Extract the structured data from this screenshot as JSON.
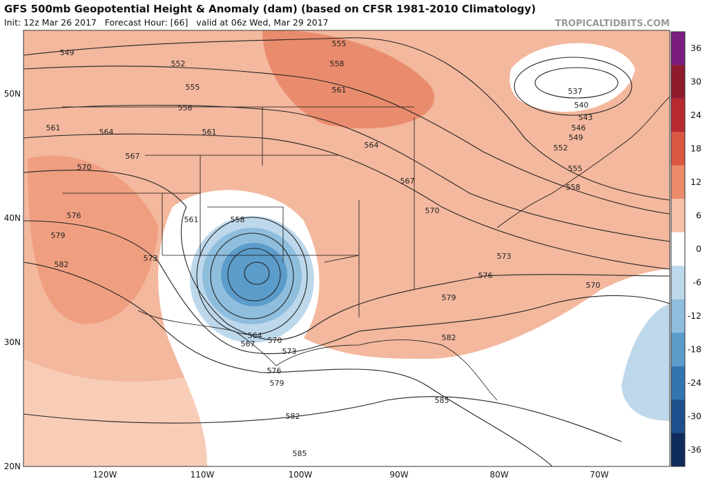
{
  "header": {
    "title": "GFS 500mb Geopotential Height & Anomaly (dam) (based on CFSR 1981-2010 Climatology)",
    "subtitle": "Init: 12z Mar 26 2017   Forecast Hour: [66]   valid at 06z Wed, Mar 29 2017",
    "watermark": "TROPICALTIDBITS.COM"
  },
  "colorbar": {
    "lim": [
      -39,
      39
    ],
    "ticks": [
      36,
      30,
      24,
      18,
      12,
      6,
      0,
      -6,
      -12,
      -18,
      -24,
      -30,
      -36
    ],
    "colors": [
      "#7b1d7e",
      "#8d1b2c",
      "#b72b30",
      "#da5742",
      "#ec8a6c",
      "#f7c2a9",
      "#ffffff",
      "#bdd8eb",
      "#8fbedd",
      "#5c9ccb",
      "#3375b0",
      "#1c4f8b",
      "#0f2b5b"
    ]
  },
  "axes": {
    "lat_labels": [
      "50N",
      "40N",
      "30N",
      "20N"
    ],
    "lon_labels": [
      "120W",
      "110W",
      "100W",
      "90W",
      "80W",
      "70W"
    ]
  },
  "contour_labels": [
    549,
    552,
    555,
    558,
    561,
    564,
    561,
    567,
    570,
    576,
    579,
    582,
    573,
    561,
    558,
    564,
    567,
    570,
    573,
    576,
    579,
    582,
    585,
    555,
    558,
    561,
    564,
    567,
    570,
    573,
    576,
    579,
    582,
    585,
    570,
    537,
    540,
    543,
    546,
    549,
    552,
    555,
    558
  ]
}
